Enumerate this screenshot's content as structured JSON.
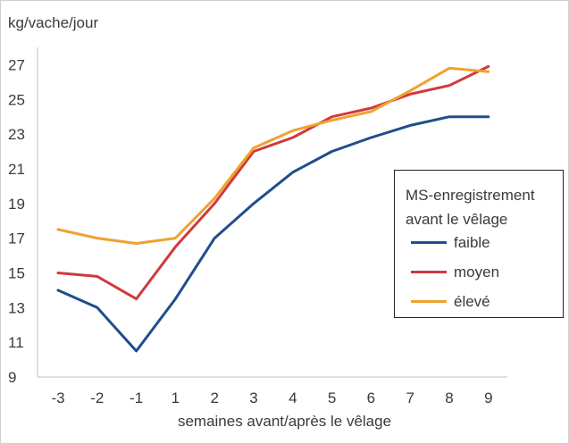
{
  "chart_data": {
    "type": "line",
    "ylabel": "kg/vache/jour",
    "xlabel": "semaines avant/après le vêlage",
    "categories": [
      "-3",
      "-2",
      "-1",
      "1",
      "2",
      "3",
      "4",
      "5",
      "6",
      "7",
      "8",
      "9"
    ],
    "ylim": [
      9,
      28
    ],
    "yticks": [
      9,
      11,
      13,
      15,
      17,
      19,
      21,
      23,
      25,
      27
    ],
    "grid": false,
    "legend_title": "MS-enregistrement\navant le vêlage",
    "legend_position": "right",
    "series": [
      {
        "name": "faible",
        "color": "#1f4e8c",
        "values": [
          14.0,
          13.0,
          10.5,
          13.5,
          17.0,
          19.0,
          20.8,
          22.0,
          22.8,
          23.5,
          24.0,
          24.0
        ]
      },
      {
        "name": "moyen",
        "color": "#d0393e",
        "values": [
          15.0,
          14.8,
          13.5,
          16.5,
          19.0,
          22.0,
          22.8,
          24.0,
          24.5,
          25.3,
          25.8,
          26.9
        ]
      },
      {
        "name": "élevé",
        "color": "#f0a22e",
        "values": [
          17.5,
          17.0,
          16.7,
          17.0,
          19.3,
          22.2,
          23.2,
          23.8,
          24.3,
          25.5,
          26.8,
          26.6
        ]
      }
    ]
  }
}
